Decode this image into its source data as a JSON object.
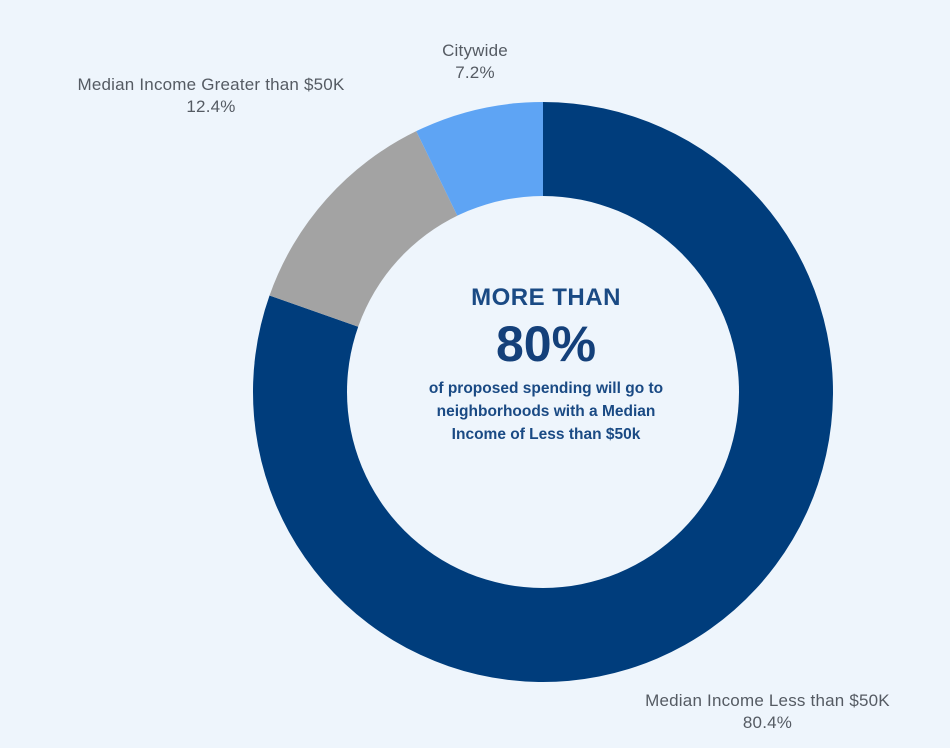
{
  "chart_data": {
    "type": "pie",
    "style": "donut",
    "slices": [
      {
        "label": "Median Income Less than $50K",
        "value_label": "80.4%",
        "value": 80.4,
        "color": "#003d7c"
      },
      {
        "label": "Median Income Greater than $50K",
        "value_label": "12.4%",
        "value": 12.4,
        "color": "#a3a3a3"
      },
      {
        "label": "Citywide",
        "value_label": "7.2%",
        "value": 7.2,
        "color": "#5ea4f4"
      }
    ],
    "center": {
      "heading": "MORE THAN",
      "big": "80%",
      "text": "of proposed spending will go to neighborhoods with a Median Income of Less than $50k"
    },
    "legend": "none"
  }
}
